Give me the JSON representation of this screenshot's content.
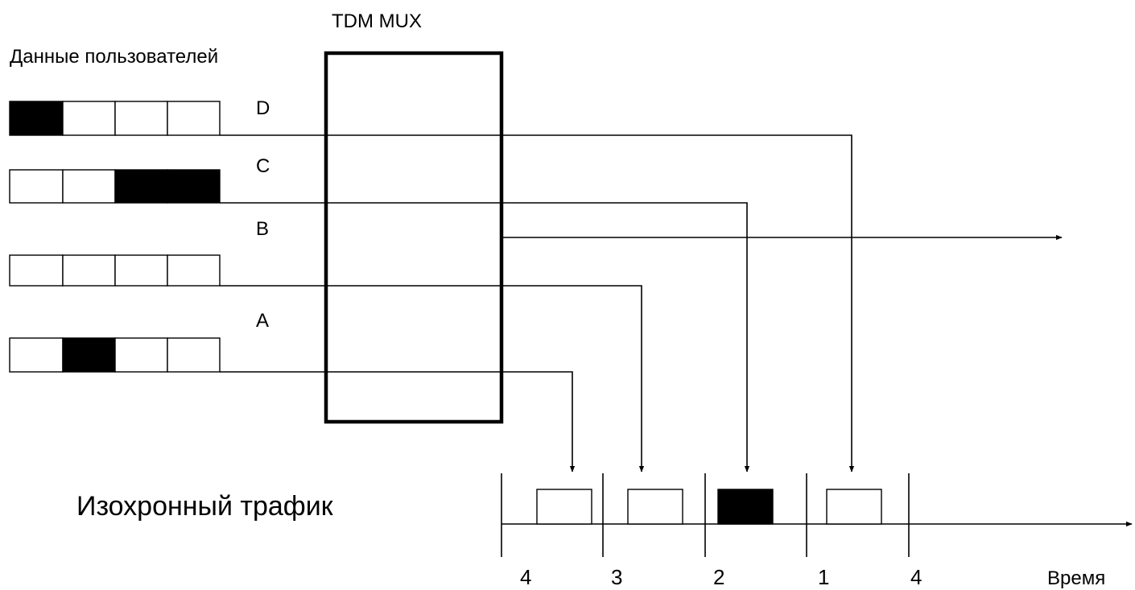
{
  "mux_label": "TDM MUX",
  "users_label": "Данные пользователей",
  "traffic_label": "Изохронный трафик",
  "time_label": "Время",
  "colors": {
    "filled": "#000000",
    "empty": "#ffffff",
    "stroke": "#000000"
  },
  "channels": [
    {
      "name": "D",
      "cells": [
        true,
        false,
        false,
        false
      ],
      "slot_number": "1",
      "slot_filled": false
    },
    {
      "name": "C",
      "cells": [
        false,
        false,
        true,
        true
      ],
      "slot_number": "2",
      "slot_filled": true
    },
    {
      "name": "B",
      "cells": [
        false,
        false,
        false,
        false
      ],
      "slot_number": "3",
      "slot_filled": false
    },
    {
      "name": "A",
      "cells": [
        false,
        true,
        false,
        false
      ],
      "slot_number": "4",
      "slot_filled": false
    }
  ],
  "frame_numbers": [
    "4",
    "3",
    "2",
    "1",
    "4"
  ]
}
